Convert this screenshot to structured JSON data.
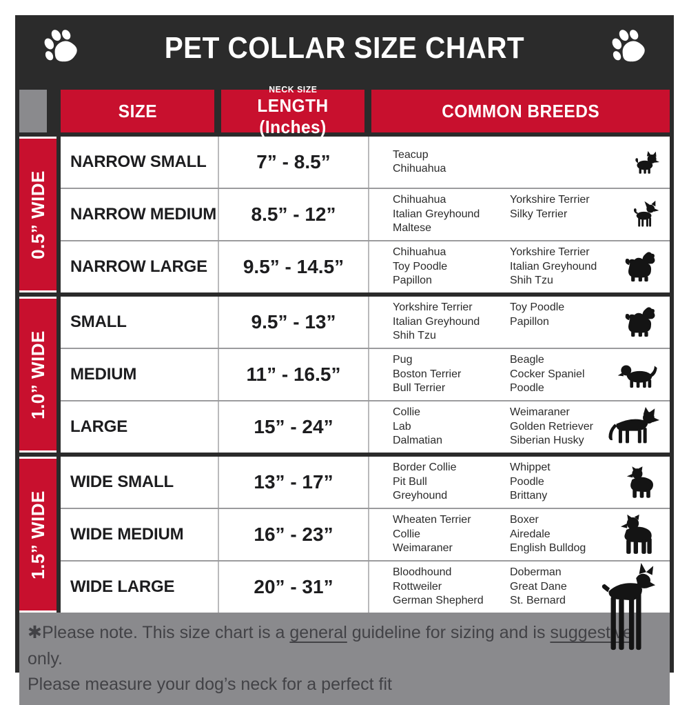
{
  "header": {
    "title": "PET COLLAR SIZE CHART",
    "left_icon": "paw-icon",
    "right_icon": "paw-icon"
  },
  "columns": {
    "size": "SIZE",
    "neck_size_label": "NECK SIZE",
    "length_label": "LENGTH (Inches)",
    "breeds": "COMMON BREEDS"
  },
  "groups": [
    {
      "band": "0.5” WIDE",
      "rows": [
        {
          "size": "NARROW SMALL",
          "length": "7” - 8.5”",
          "breeds_col1": [
            "Teacup",
            "Chihuahua"
          ],
          "breeds_col2": [],
          "icon": "yorkie-dog-icon"
        },
        {
          "size": "NARROW MEDIUM",
          "length": "8.5” - 12”",
          "breeds_col1": [
            "Chihuahua",
            "Italian Greyhound",
            "Maltese"
          ],
          "breeds_col2": [
            "Yorkshire Terrier",
            "Silky Terrier"
          ],
          "icon": "chihuahua-dog-icon"
        },
        {
          "size": "NARROW LARGE",
          "length": "9.5” - 14.5”",
          "breeds_col1": [
            "Chihuahua",
            "Toy Poodle",
            "Papillon"
          ],
          "breeds_col2": [
            "Yorkshire Terrier",
            "Italian Greyhound",
            "Shih Tzu"
          ],
          "icon": "shih-tzu-dog-icon"
        }
      ]
    },
    {
      "band": "1.0” WIDE",
      "rows": [
        {
          "size": "SMALL",
          "length": "9.5” - 13”",
          "breeds_col1": [
            "Yorkshire Terrier",
            "Italian Greyhound",
            "Shih Tzu"
          ],
          "breeds_col2": [
            "Toy Poodle",
            "Papillon"
          ],
          "icon": "shih-tzu-dog-icon"
        },
        {
          "size": "MEDIUM",
          "length": "11” - 16.5”",
          "breeds_col1": [
            "Pug",
            "Boston Terrier",
            "Bull Terrier"
          ],
          "breeds_col2": [
            "Beagle",
            "Cocker Spaniel",
            "Poodle"
          ],
          "icon": "beagle-dog-icon"
        },
        {
          "size": "LARGE",
          "length": "15” - 24”",
          "breeds_col1": [
            "Collie",
            "Lab",
            "Dalmatian"
          ],
          "breeds_col2": [
            "Weimaraner",
            "Golden Retriever",
            "Siberian Husky"
          ],
          "icon": "shepherd-dog-icon"
        }
      ]
    },
    {
      "band": "1.5” WIDE",
      "rows": [
        {
          "size": "WIDE SMALL",
          "length": "13” - 17”",
          "breeds_col1": [
            "Border Collie",
            "Pit Bull",
            "Greyhound"
          ],
          "breeds_col2": [
            "Whippet",
            "Poodle",
            "Brittany"
          ],
          "icon": "pit-bull-dog-icon"
        },
        {
          "size": "WIDE MEDIUM",
          "length": "16” - 23”",
          "breeds_col1": [
            "Wheaten Terrier",
            "Collie",
            "Weimaraner"
          ],
          "breeds_col2": [
            "Boxer",
            "Airedale",
            "English Bulldog"
          ],
          "icon": "staffordshire-dog-icon"
        },
        {
          "size": "WIDE LARGE",
          "length": "20” - 31”",
          "breeds_col1": [
            "Bloodhound",
            "Rottweiler",
            "German Shepherd"
          ],
          "breeds_col2": [
            "Doberman",
            "Great Dane",
            "St. Bernard"
          ],
          "icon": "doberman-dog-icon"
        }
      ]
    }
  ],
  "note": {
    "line1_pre": "✱Please note. This size chart is a ",
    "line1_underline1": "general",
    "line1_mid": " guideline for sizing and is ",
    "line1_underline2": "suggestive",
    "line1_post": " only.",
    "line2": "Please measure your dog’s neck for a perfect fit"
  },
  "colors": {
    "accent_red": "#c8102e",
    "frame_dark": "#2b2b2b",
    "panel_gray": "#8a8a8d"
  }
}
